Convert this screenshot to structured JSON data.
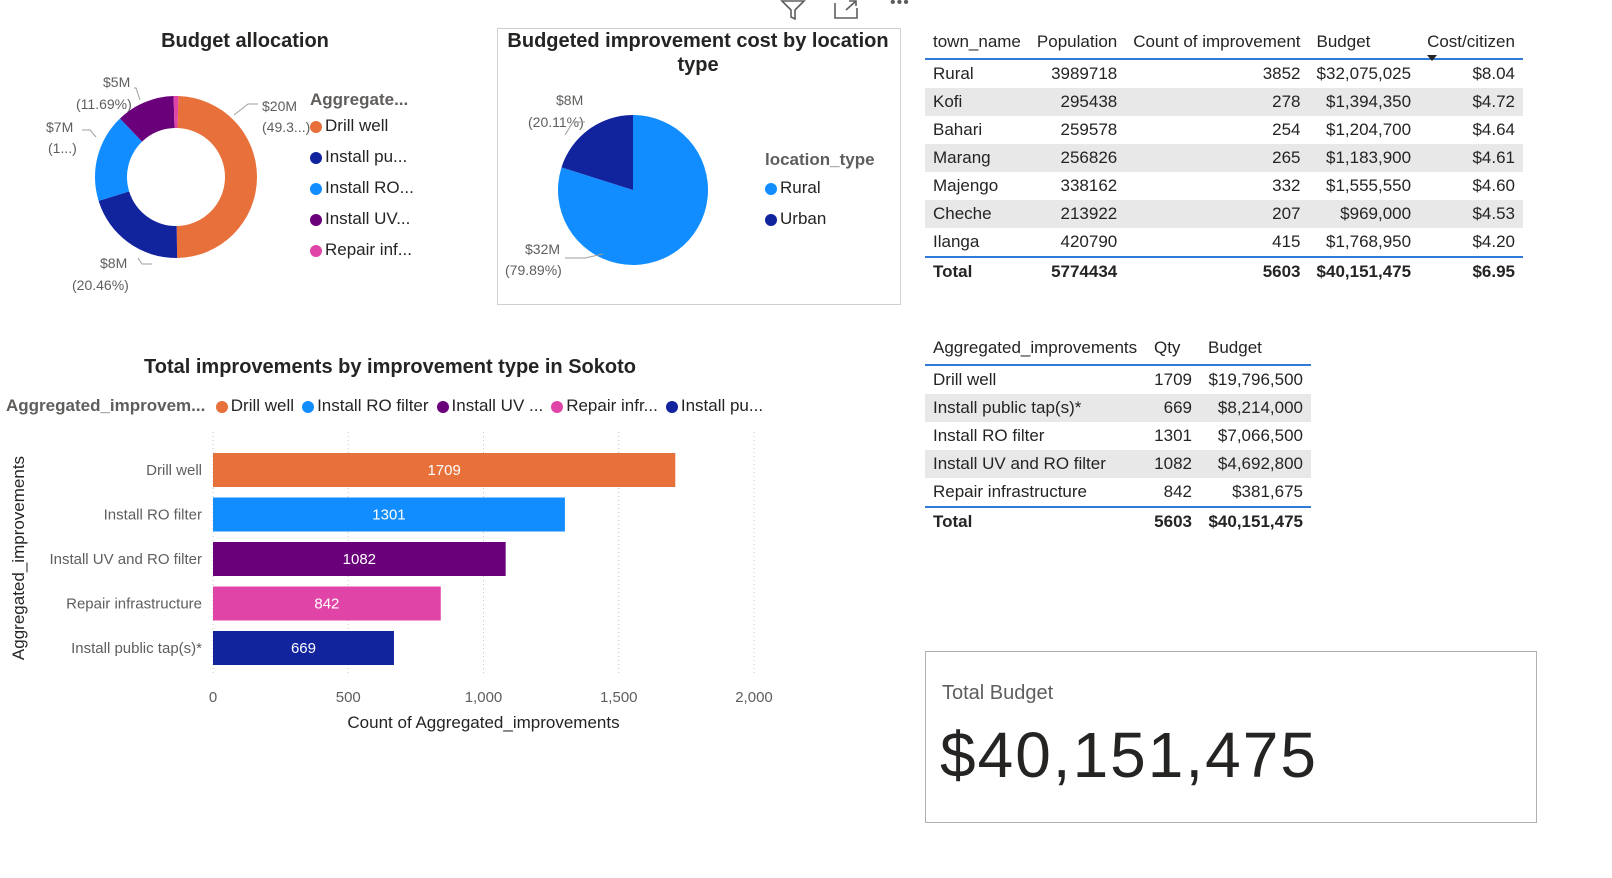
{
  "toolbar": {
    "icons": [
      "filter-icon",
      "focus-mode-icon",
      "more-options-icon"
    ],
    "more_glyph": "•••"
  },
  "budget_allocation": {
    "title": "Budget allocation",
    "legend_title": "Aggregate...",
    "legend_items": [
      {
        "label": "Drill well",
        "color": "#e8703a"
      },
      {
        "label": "Install pu...",
        "color": "#12239e"
      },
      {
        "label": "Install RO...",
        "color": "#118dff"
      },
      {
        "label": "Install UV...",
        "color": "#6b007b"
      },
      {
        "label": "Repair inf...",
        "color": "#e044a7"
      }
    ],
    "slice_labels": [
      {
        "value": "$20M",
        "pct": "(49.3...)"
      },
      {
        "value": "$8M",
        "pct": "(20.46%)"
      },
      {
        "value": "$7M",
        "pct": "(1...)"
      },
      {
        "value": "$5M",
        "pct": "(11.69%)"
      }
    ]
  },
  "location_cost": {
    "title_line1": "Budgeted improvement cost by location",
    "title_line2": "type",
    "legend_title": "location_type",
    "legend_items": [
      {
        "label": "Rural",
        "color": "#118dff"
      },
      {
        "label": "Urban",
        "color": "#12239e"
      }
    ],
    "slice_labels": [
      {
        "value": "$8M",
        "pct": "(20.11%)"
      },
      {
        "value": "$32M",
        "pct": "(79.89%)"
      }
    ]
  },
  "town_table": {
    "headers": [
      "town_name",
      "Population",
      "Count of improvement",
      "Budget",
      "Cost/citizen"
    ],
    "rows": [
      [
        "Rural",
        "3989718",
        "3852",
        "$32,075,025",
        "$8.04"
      ],
      [
        "Kofi",
        "295438",
        "278",
        "$1,394,350",
        "$4.72"
      ],
      [
        "Bahari",
        "259578",
        "254",
        "$1,204,700",
        "$4.64"
      ],
      [
        "Marang",
        "256826",
        "265",
        "$1,183,900",
        "$4.61"
      ],
      [
        "Majengo",
        "338162",
        "332",
        "$1,555,550",
        "$4.60"
      ],
      [
        "Cheche",
        "213922",
        "207",
        "$969,000",
        "$4.53"
      ],
      [
        "Ilanga",
        "420790",
        "415",
        "$1,768,950",
        "$4.20"
      ]
    ],
    "total": [
      "Total",
      "5774434",
      "5603",
      "$40,151,475",
      "$6.95"
    ]
  },
  "improvements_table": {
    "headers": [
      "Aggregated_improvements",
      "Qty",
      "Budget"
    ],
    "rows": [
      [
        "Drill well",
        "1709",
        "$19,796,500"
      ],
      [
        "Install public tap(s)*",
        "669",
        "$8,214,000"
      ],
      [
        "Install RO filter",
        "1301",
        "$7,066,500"
      ],
      [
        "Install UV and RO filter",
        "1082",
        "$4,692,800"
      ],
      [
        "Repair infrastructure",
        "842",
        "$381,675"
      ]
    ],
    "total": [
      "Total",
      "5603",
      "$40,151,475"
    ]
  },
  "bar_chart": {
    "title": "Total improvements by improvement type in Sokoto",
    "legend_title": "Aggregated_improvem...",
    "legend_items": [
      {
        "label": "Drill well",
        "color": "#e8703a"
      },
      {
        "label": "Install RO filter",
        "color": "#118dff"
      },
      {
        "label": "Install UV ...",
        "color": "#6b007b"
      },
      {
        "label": "Repair infr...",
        "color": "#e044a7"
      },
      {
        "label": "Install pu...",
        "color": "#12239e"
      }
    ],
    "xlabel": "Count of Aggregated_improvements",
    "ylabel": "Aggregated_improvements"
  },
  "kpi_card": {
    "label": "Total Budget",
    "value": "$40,151,475"
  },
  "chart_data": [
    {
      "type": "pie",
      "title": "Budget allocation",
      "legend_title": "Aggregate...",
      "categories": [
        "Drill well",
        "Install public tap(s)*",
        "Install RO filter",
        "Install UV and RO filter",
        "Repair infrastructure"
      ],
      "values": [
        19796500,
        8214000,
        7066500,
        4692800,
        381675
      ],
      "colors": [
        "#e8703a",
        "#12239e",
        "#118dff",
        "#6b007b",
        "#e044a7"
      ],
      "donut": true
    },
    {
      "type": "pie",
      "title": "Budgeted improvement cost by location type",
      "legend_title": "location_type",
      "categories": [
        "Rural",
        "Urban"
      ],
      "values": [
        32075025,
        8076450
      ],
      "colors": [
        "#118dff",
        "#12239e"
      ]
    },
    {
      "type": "bar",
      "orientation": "horizontal",
      "title": "Total improvements by improvement type in Sokoto",
      "categories": [
        "Drill well",
        "Install RO filter",
        "Install UV and RO filter",
        "Repair infrastructure",
        "Install public tap(s)*"
      ],
      "values": [
        1709,
        1301,
        1082,
        842,
        669
      ],
      "colors": [
        "#e8703a",
        "#118dff",
        "#6b007b",
        "#e044a7",
        "#12239e"
      ],
      "xlabel": "Count of Aggregated_improvements",
      "ylabel": "Aggregated_improvements",
      "xlim": [
        0,
        2000
      ],
      "xticks": [
        0,
        500,
        1000,
        1500,
        2000
      ],
      "xtick_labels": [
        "0",
        "500",
        "1,000",
        "1,500",
        "2,000"
      ],
      "grid": true
    }
  ]
}
